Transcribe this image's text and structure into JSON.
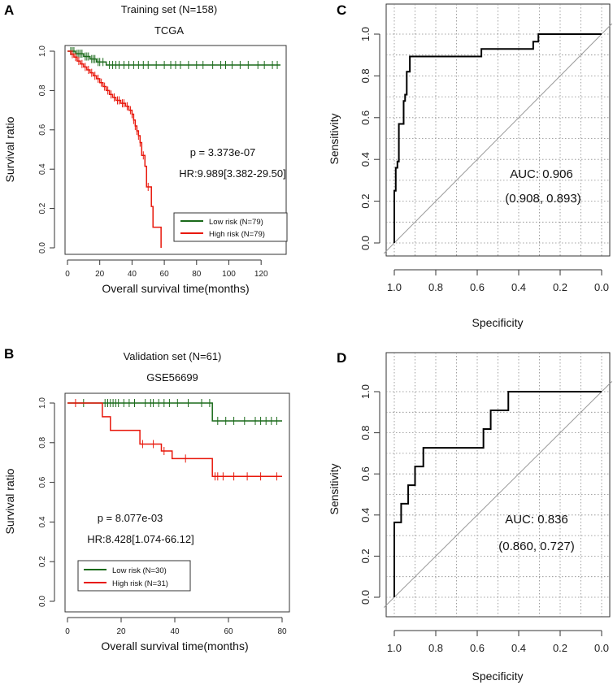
{
  "chart_data": [
    {
      "panel": "A",
      "type": "line",
      "kind": "kaplan-meier",
      "title": "Training set  (N=158)",
      "subtitle": "TCGA",
      "xlabel": "Overall survival time(months)",
      "ylabel": "Survival ratio",
      "xlim": [
        0,
        132
      ],
      "ylim": [
        0,
        1
      ],
      "xticks": [
        0,
        20,
        40,
        60,
        80,
        100,
        120
      ],
      "yticks": [
        0.0,
        0.2,
        0.4,
        0.6,
        0.8,
        1.0
      ],
      "annotations": [
        "p = 3.373e-07",
        "HR:9.989[3.382-29.50]"
      ],
      "legend_position": "bottom-right",
      "series": [
        {
          "name": "Low risk (N=79)",
          "color": "#1a6a1a",
          "steps": [
            [
              0,
              1.0
            ],
            [
              5,
              0.987
            ],
            [
              10,
              0.973
            ],
            [
              14,
              0.96
            ],
            [
              18,
              0.945
            ],
            [
              24,
              0.93
            ],
            [
              132,
              0.93
            ]
          ],
          "censor": [
            2,
            3,
            4,
            6,
            7,
            8,
            9,
            11,
            12,
            13,
            15,
            16,
            17,
            19,
            20,
            22,
            26,
            28,
            30,
            32,
            35,
            38,
            41,
            44,
            47,
            50,
            55,
            60,
            64,
            67,
            70,
            75,
            80,
            84,
            90,
            95,
            98,
            102,
            107,
            112,
            118,
            122,
            127,
            130
          ]
        },
        {
          "name": "High risk (N=79)",
          "color": "#e8180c",
          "steps": [
            [
              0,
              1.0
            ],
            [
              2,
              0.985
            ],
            [
              4,
              0.97
            ],
            [
              6,
              0.95
            ],
            [
              8,
              0.935
            ],
            [
              10,
              0.92
            ],
            [
              12,
              0.905
            ],
            [
              14,
              0.89
            ],
            [
              16,
              0.875
            ],
            [
              18,
              0.86
            ],
            [
              20,
              0.84
            ],
            [
              22,
              0.82
            ],
            [
              24,
              0.8
            ],
            [
              26,
              0.78
            ],
            [
              28,
              0.765
            ],
            [
              30,
              0.75
            ],
            [
              33,
              0.735
            ],
            [
              36,
              0.72
            ],
            [
              38,
              0.7
            ],
            [
              40,
              0.68
            ],
            [
              41,
              0.65
            ],
            [
              42,
              0.62
            ],
            [
              43,
              0.595
            ],
            [
              44,
              0.57
            ],
            [
              45,
              0.535
            ],
            [
              46,
              0.47
            ],
            [
              48,
              0.415
            ],
            [
              49,
              0.31
            ],
            [
              52,
              0.21
            ],
            [
              53,
              0.105
            ],
            [
              58,
              0.0
            ]
          ],
          "censor": [
            3,
            5,
            7,
            9,
            11,
            13,
            15,
            17,
            19,
            21,
            23,
            25,
            27,
            29,
            31,
            32,
            34,
            35,
            37,
            39,
            40,
            41,
            42,
            43,
            44,
            45,
            47,
            50
          ]
        }
      ]
    },
    {
      "panel": "B",
      "type": "line",
      "kind": "kaplan-meier",
      "title": "Validation set  (N=61)",
      "subtitle": "GSE56699",
      "xlabel": "Overall survival time(months)",
      "ylabel": "Survival ratio",
      "xlim": [
        0,
        80
      ],
      "ylim": [
        0,
        1
      ],
      "xticks": [
        0,
        20,
        40,
        60,
        80
      ],
      "yticks": [
        0.0,
        0.2,
        0.4,
        0.6,
        0.8,
        1.0
      ],
      "annotations": [
        "p = 8.077e-03",
        "HR:8.428[1.074-66.12]"
      ],
      "legend_position": "bottom-left",
      "series": [
        {
          "name": "Low risk (N=30)",
          "color": "#1a6a1a",
          "steps": [
            [
              0,
              1.0
            ],
            [
              54,
              0.91
            ],
            [
              80,
              0.91
            ]
          ],
          "censor": [
            6,
            14,
            15,
            16,
            17,
            18,
            19,
            21,
            23,
            25,
            29,
            31,
            32,
            34,
            36,
            38,
            41,
            45,
            50,
            53,
            56,
            59,
            62,
            66,
            70,
            72,
            74,
            76,
            78
          ]
        },
        {
          "name": "High risk (N=31)",
          "color": "#e8180c",
          "steps": [
            [
              0,
              1.0
            ],
            [
              13,
              0.931
            ],
            [
              16,
              0.862
            ],
            [
              27,
              0.793
            ],
            [
              35,
              0.758
            ],
            [
              39,
              0.72
            ],
            [
              54,
              0.63
            ],
            [
              80,
              0.63
            ]
          ],
          "censor": [
            3,
            28,
            32,
            36,
            44,
            55,
            56,
            58,
            62,
            67,
            72,
            78
          ]
        }
      ]
    },
    {
      "panel": "C",
      "type": "line",
      "kind": "roc",
      "xlabel": "Specificity",
      "ylabel": "Sensitivity",
      "xlim": [
        1.0,
        0.0
      ],
      "ylim": [
        0,
        1
      ],
      "xticks": [
        1.0,
        0.8,
        0.6,
        0.4,
        0.2,
        0.0
      ],
      "yticks": [
        0.0,
        0.2,
        0.4,
        0.6,
        0.8,
        1.0
      ],
      "annotations": [
        "AUC: 0.906",
        "(0.908, 0.893)"
      ],
      "curve": [
        [
          1.0,
          0.0
        ],
        [
          1.0,
          0.25
        ],
        [
          0.993,
          0.25
        ],
        [
          0.993,
          0.36
        ],
        [
          0.985,
          0.36
        ],
        [
          0.985,
          0.39
        ],
        [
          0.978,
          0.39
        ],
        [
          0.978,
          0.57
        ],
        [
          0.955,
          0.57
        ],
        [
          0.955,
          0.68
        ],
        [
          0.948,
          0.68
        ],
        [
          0.948,
          0.71
        ],
        [
          0.94,
          0.71
        ],
        [
          0.94,
          0.82
        ],
        [
          0.925,
          0.82
        ],
        [
          0.925,
          0.893
        ],
        [
          0.908,
          0.893
        ],
        [
          0.58,
          0.893
        ],
        [
          0.58,
          0.929
        ],
        [
          0.33,
          0.929
        ],
        [
          0.33,
          0.964
        ],
        [
          0.305,
          0.964
        ],
        [
          0.305,
          1.0
        ],
        [
          0.0,
          1.0
        ]
      ]
    },
    {
      "panel": "D",
      "type": "line",
      "kind": "roc",
      "xlabel": "Specificity",
      "ylabel": "Sensitivity",
      "xlim": [
        1.0,
        0.0
      ],
      "ylim": [
        0,
        1
      ],
      "xticks": [
        1.0,
        0.8,
        0.6,
        0.4,
        0.2,
        0.0
      ],
      "yticks": [
        0.0,
        0.2,
        0.4,
        0.6,
        0.8,
        1.0
      ],
      "annotations": [
        "AUC: 0.836",
        "(0.860, 0.727)"
      ],
      "curve": [
        [
          1.0,
          0.0
        ],
        [
          1.0,
          0.364
        ],
        [
          0.967,
          0.364
        ],
        [
          0.967,
          0.455
        ],
        [
          0.933,
          0.455
        ],
        [
          0.933,
          0.545
        ],
        [
          0.9,
          0.545
        ],
        [
          0.9,
          0.636
        ],
        [
          0.86,
          0.636
        ],
        [
          0.86,
          0.727
        ],
        [
          0.57,
          0.727
        ],
        [
          0.57,
          0.818
        ],
        [
          0.535,
          0.818
        ],
        [
          0.535,
          0.909
        ],
        [
          0.45,
          0.909
        ],
        [
          0.45,
          1.0
        ],
        [
          0.0,
          1.0
        ]
      ]
    }
  ]
}
